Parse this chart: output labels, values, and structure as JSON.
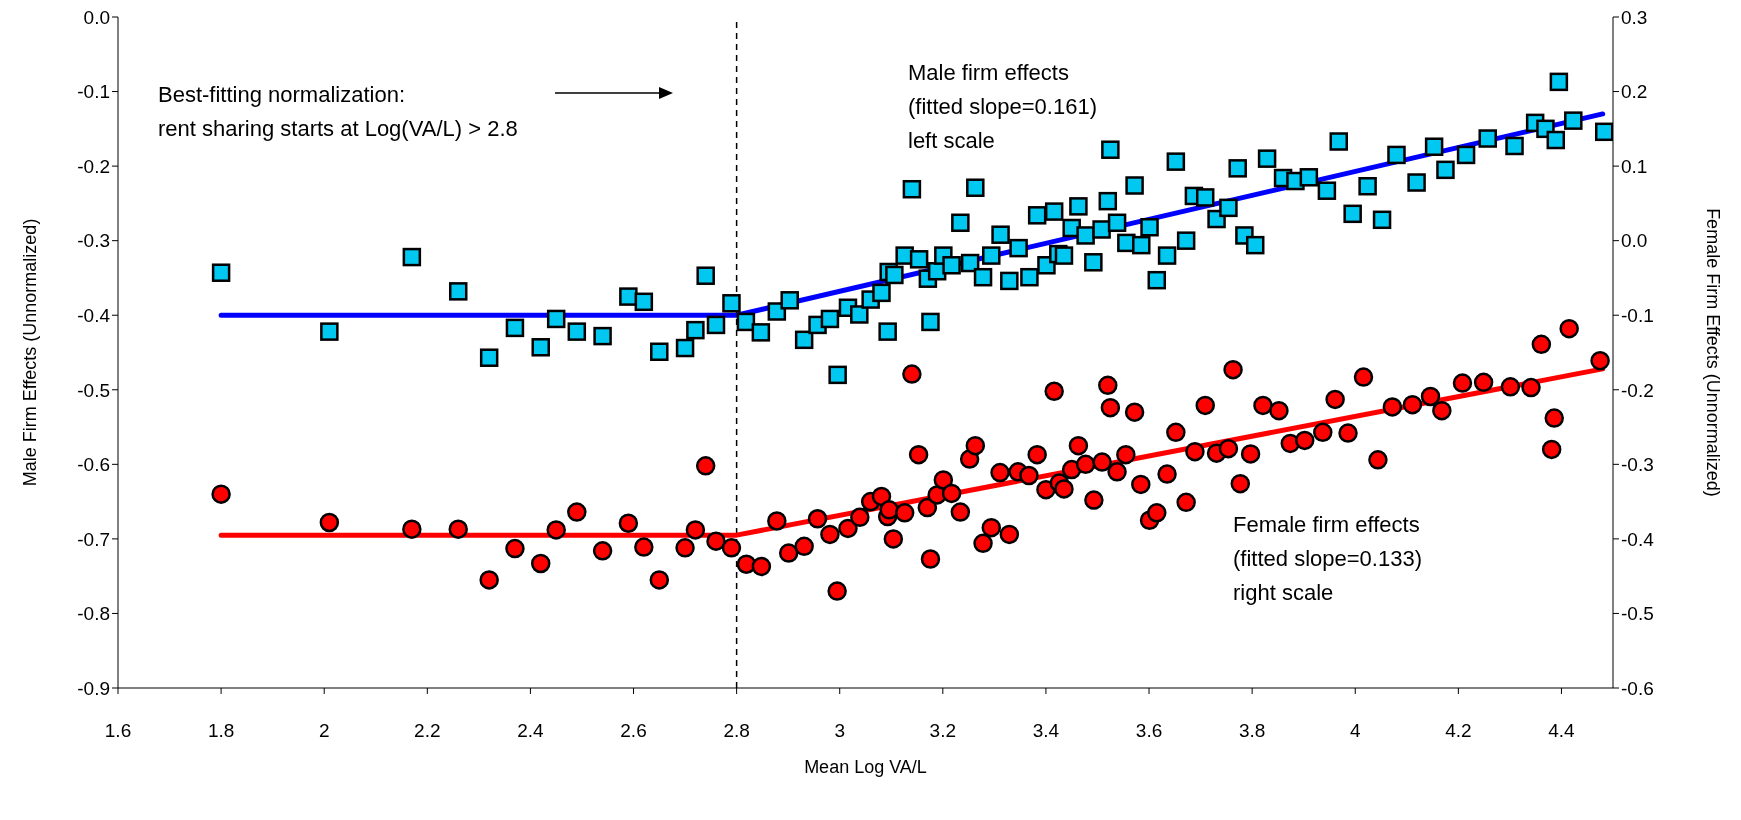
{
  "chart_data": {
    "type": "scatter",
    "xlabel": "Mean Log VA/L",
    "ylabel": "Male Firm Effects (Unnormalized)",
    "y2label": "Female Firm Effects (Unnormalized)",
    "xlim": [
      1.6,
      4.5
    ],
    "xticks": [
      1.6,
      1.8,
      2,
      2.2,
      2.4,
      2.6,
      2.8,
      3,
      3.2,
      3.4,
      3.6,
      3.8,
      4,
      4.2,
      4.4
    ],
    "ylim": [
      -0.9,
      0
    ],
    "yticks": [
      -0.9,
      -0.8,
      -0.7,
      -0.6,
      -0.5,
      -0.4,
      -0.3,
      -0.2,
      -0.1,
      {
        "value": 0,
        "label": "0.0"
      }
    ],
    "y2lim": [
      -0.6,
      0.3
    ],
    "y2ticks": [
      -0.6,
      -0.5,
      -0.4,
      -0.3,
      -0.2,
      -0.1,
      {
        "value": 0,
        "label": "0.0"
      },
      0.1,
      0.2,
      0.3
    ],
    "ref_lines": [
      {
        "axis": "x",
        "value": 2.8,
        "color": "#000000",
        "line_style": "dashed"
      }
    ],
    "annotations": [
      "Best-fitting normalization:\nrent sharing starts at Log(VA/L) > 2.8",
      "Male firm effects\n(fitted slope=0.161)\nleft scale",
      "Female firm effects\n(fitted slope=0.133)\nright scale"
    ],
    "series": [
      {
        "color": "#00c8f0",
        "marker": "square",
        "x": [
          1.8,
          2.01,
          2.17,
          2.26,
          2.32,
          2.37,
          2.42,
          2.45,
          2.49,
          2.54,
          2.59,
          2.62,
          2.65,
          2.7,
          2.72,
          2.74,
          2.76,
          2.79,
          2.818,
          2.847,
          2.878,
          2.903,
          2.931,
          2.957,
          2.981,
          2.996,
          3.016,
          3.038,
          3.06,
          3.081,
          3.093,
          3.095,
          3.106,
          3.126,
          3.14,
          3.154,
          3.171,
          3.176,
          3.189,
          3.201,
          3.217,
          3.234,
          3.253,
          3.263,
          3.278,
          3.294,
          3.312,
          3.329,
          3.347,
          3.368,
          3.383,
          3.401,
          3.416,
          3.424,
          3.435,
          3.45,
          3.463,
          3.477,
          3.492,
          3.508,
          3.52,
          3.525,
          3.538,
          3.556,
          3.572,
          3.585,
          3.601,
          3.615,
          3.635,
          3.652,
          3.672,
          3.687,
          3.709,
          3.731,
          3.754,
          3.772,
          3.785,
          3.806,
          3.829,
          3.86,
          3.884,
          3.91,
          3.945,
          3.968,
          3.995,
          4.024,
          4.052,
          4.08,
          4.119,
          4.153,
          4.175,
          4.215,
          4.257,
          4.309,
          4.349,
          4.369,
          4.389,
          4.395,
          4.423,
          4.483
        ],
        "values": [
          -0.343,
          -0.422,
          -0.322,
          -0.368,
          -0.457,
          -0.417,
          -0.443,
          -0.405,
          -0.422,
          -0.428,
          -0.375,
          -0.382,
          -0.449,
          -0.444,
          -0.42,
          -0.347,
          -0.413,
          -0.384,
          -0.409,
          -0.423,
          -0.395,
          -0.38,
          -0.433,
          -0.413,
          -0.405,
          -0.48,
          -0.39,
          -0.399,
          -0.379,
          -0.37,
          -0.422,
          -0.342,
          -0.346,
          -0.32,
          -0.231,
          -0.325,
          -0.351,
          -0.409,
          -0.341,
          -0.32,
          -0.333,
          -0.276,
          -0.33,
          -0.229,
          -0.349,
          -0.32,
          -0.292,
          -0.354,
          -0.31,
          -0.349,
          -0.266,
          -0.333,
          -0.261,
          -0.318,
          -0.32,
          -0.283,
          -0.254,
          -0.293,
          -0.329,
          -0.285,
          -0.247,
          -0.178,
          -0.276,
          -0.303,
          -0.226,
          -0.306,
          -0.282,
          -0.353,
          -0.32,
          -0.194,
          -0.3,
          -0.24,
          -0.242,
          -0.271,
          -0.256,
          -0.203,
          -0.293,
          -0.306,
          -0.19,
          -0.216,
          -0.22,
          -0.215,
          -0.233,
          -0.167,
          -0.264,
          -0.227,
          -0.272,
          -0.185,
          -0.222,
          -0.174,
          -0.205,
          -0.185,
          -0.163,
          -0.173,
          -0.142,
          -0.15,
          -0.165,
          -0.087,
          -0.139,
          -0.154
        ]
      },
      {
        "axis": "y2",
        "color": "#ff0000",
        "marker": "circle",
        "x": [
          1.8,
          2.01,
          2.17,
          2.26,
          2.32,
          2.37,
          2.42,
          2.45,
          2.49,
          2.54,
          2.59,
          2.62,
          2.65,
          2.7,
          2.72,
          2.74,
          2.76,
          2.79,
          2.819,
          2.848,
          2.878,
          2.901,
          2.931,
          2.957,
          2.981,
          2.995,
          3.016,
          3.039,
          3.06,
          3.081,
          3.093,
          3.096,
          3.104,
          3.126,
          3.14,
          3.153,
          3.17,
          3.176,
          3.189,
          3.201,
          3.217,
          3.234,
          3.252,
          3.263,
          3.278,
          3.294,
          3.311,
          3.329,
          3.346,
          3.367,
          3.383,
          3.4,
          3.416,
          3.426,
          3.435,
          3.45,
          3.463,
          3.477,
          3.493,
          3.509,
          3.52,
          3.525,
          3.538,
          3.555,
          3.572,
          3.584,
          3.601,
          3.615,
          3.635,
          3.652,
          3.672,
          3.689,
          3.709,
          3.731,
          3.754,
          3.763,
          3.777,
          3.797,
          3.821,
          3.852,
          3.874,
          3.902,
          3.937,
          3.961,
          3.986,
          4.016,
          4.044,
          4.072,
          4.111,
          4.146,
          4.168,
          4.208,
          4.249,
          4.301,
          4.341,
          4.361,
          4.381,
          4.386,
          4.415,
          4.475
        ],
        "values": [
          -0.34,
          -0.378,
          -0.387,
          -0.387,
          -0.455,
          -0.413,
          -0.433,
          -0.388,
          -0.364,
          -0.416,
          -0.379,
          -0.411,
          -0.455,
          -0.412,
          -0.388,
          -0.302,
          -0.403,
          -0.412,
          -0.434,
          -0.437,
          -0.376,
          -0.419,
          -0.41,
          -0.373,
          -0.394,
          -0.47,
          -0.386,
          -0.371,
          -0.35,
          -0.343,
          -0.37,
          -0.361,
          -0.4,
          -0.365,
          -0.179,
          -0.287,
          -0.358,
          -0.427,
          -0.341,
          -0.321,
          -0.339,
          -0.364,
          -0.293,
          -0.275,
          -0.406,
          -0.385,
          -0.311,
          -0.394,
          -0.31,
          -0.315,
          -0.287,
          -0.334,
          -0.202,
          -0.325,
          -0.333,
          -0.307,
          -0.275,
          -0.3,
          -0.348,
          -0.297,
          -0.194,
          -0.224,
          -0.31,
          -0.287,
          -0.23,
          -0.327,
          -0.375,
          -0.365,
          -0.313,
          -0.257,
          -0.351,
          -0.283,
          -0.221,
          -0.285,
          -0.279,
          -0.173,
          -0.326,
          -0.286,
          -0.221,
          -0.228,
          -0.272,
          -0.268,
          -0.257,
          -0.213,
          -0.258,
          -0.183,
          -0.294,
          -0.223,
          -0.22,
          -0.209,
          -0.228,
          -0.191,
          -0.19,
          -0.196,
          -0.197,
          -0.139,
          -0.28,
          -0.238,
          -0.118,
          -0.161
        ]
      },
      {
        "type": "line",
        "color": "#0000ff",
        "marker": "none",
        "line_style": "solid",
        "x": [
          1.8,
          2.8,
          4.48
        ],
        "values": [
          -0.4,
          -0.4,
          -0.13
        ]
      },
      {
        "type": "line",
        "axis": "y2",
        "color": "#ff0000",
        "marker": "none",
        "line_style": "solid",
        "x": [
          1.8,
          2.8,
          4.48
        ],
        "values": [
          -0.395,
          -0.395,
          -0.172
        ]
      }
    ]
  }
}
